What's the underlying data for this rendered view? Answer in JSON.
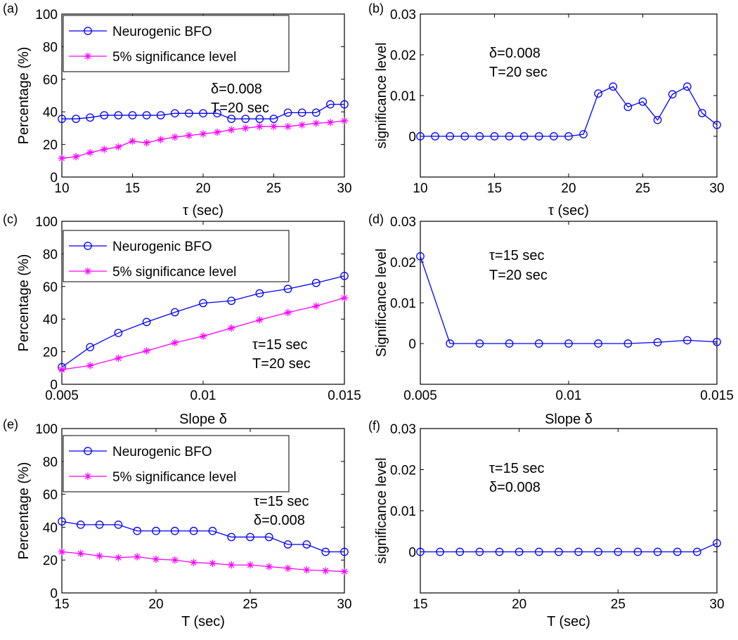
{
  "colors": {
    "blue": "#0000ff",
    "magenta": "#ff00ff",
    "axis": "#000000"
  },
  "chart_data": [
    {
      "id": "a",
      "panel_label": "(a)",
      "type": "line",
      "xlabel": "τ (sec)",
      "ylabel": "Percentage (%)",
      "xlim": [
        10,
        30
      ],
      "ylim": [
        0,
        100
      ],
      "xticks": [
        10,
        15,
        20,
        25,
        30
      ],
      "xtick_labels": [
        "10",
        "15",
        "20",
        "25",
        "30"
      ],
      "yticks": [
        0,
        20,
        40,
        60,
        80,
        100
      ],
      "ytick_labels": [
        "0",
        "20",
        "40",
        "60",
        "80",
        "100"
      ],
      "legend": true,
      "x": [
        10,
        11,
        12,
        13,
        14,
        15,
        16,
        17,
        18,
        19,
        20,
        21,
        22,
        23,
        24,
        25,
        26,
        27,
        28,
        29,
        30
      ],
      "series": [
        {
          "name": "Neurogenic BFO",
          "color": "#0000ff",
          "marker": "circle",
          "values": [
            35.7,
            35.7,
            36.5,
            37.9,
            37.9,
            37.9,
            37.9,
            37.9,
            39.1,
            39.1,
            39.1,
            39.1,
            35.7,
            35.7,
            35.7,
            35.7,
            39.5,
            39.5,
            39.5,
            44.6,
            44.6
          ]
        },
        {
          "name": "5% significance level",
          "color": "#ff00ff",
          "marker": "star",
          "values": [
            11.5,
            12.5,
            15,
            17,
            18.5,
            22,
            21,
            23,
            24.5,
            25.5,
            26.5,
            27.5,
            29,
            30,
            31,
            31,
            31,
            32,
            33,
            33.5,
            34.5
          ]
        }
      ],
      "annotations": [
        "δ=0.008",
        "T=20 sec"
      ]
    },
    {
      "id": "b",
      "panel_label": "(b)",
      "type": "line",
      "xlabel": "τ (sec)",
      "ylabel": "significance level",
      "xlim": [
        10,
        30
      ],
      "ylim": [
        -0.01,
        0.03
      ],
      "xticks": [
        10,
        15,
        20,
        25,
        30
      ],
      "xtick_labels": [
        "10",
        "15",
        "20",
        "25",
        "30"
      ],
      "yticks": [
        0,
        0.01,
        0.02,
        0.03
      ],
      "ytick_labels": [
        "0",
        "0.01",
        "0.02",
        "0.03"
      ],
      "legend": false,
      "x": [
        10,
        11,
        12,
        13,
        14,
        15,
        16,
        17,
        18,
        19,
        20,
        21,
        22,
        23,
        24,
        25,
        26,
        27,
        28,
        29,
        30
      ],
      "series": [
        {
          "name": "significance level",
          "color": "#0000ff",
          "marker": "circle",
          "values": [
            0,
            0,
            0,
            0,
            0,
            0,
            0,
            0,
            0,
            0,
            0,
            0.0005,
            0.0105,
            0.0122,
            0.0072,
            0.0085,
            0.004,
            0.0103,
            0.0122,
            0.0057,
            0.0028
          ]
        }
      ],
      "annotations": [
        "δ=0.008",
        "T=20 sec"
      ]
    },
    {
      "id": "c",
      "panel_label": "(c)",
      "type": "line",
      "xlabel": "Slope δ",
      "ylabel": "Percentage (%)",
      "xlim": [
        0.005,
        0.015
      ],
      "ylim": [
        0,
        100
      ],
      "xticks": [
        0.005,
        0.01,
        0.015
      ],
      "xtick_labels": [
        "0.005",
        "0.01",
        "0.015"
      ],
      "yticks": [
        0,
        20,
        40,
        60,
        80,
        100
      ],
      "ytick_labels": [
        "0",
        "20",
        "40",
        "60",
        "80",
        "100"
      ],
      "legend": true,
      "x": [
        0.005,
        0.006,
        0.007,
        0.008,
        0.009,
        0.01,
        0.011,
        0.012,
        0.013,
        0.014,
        0.015
      ],
      "series": [
        {
          "name": "Neurogenic BFO",
          "color": "#0000ff",
          "marker": "circle",
          "values": [
            10.5,
            22.8,
            31.5,
            38.2,
            44.2,
            49.8,
            51.2,
            55.8,
            58.5,
            62.2,
            66.5
          ]
        },
        {
          "name": "5% significance level",
          "color": "#ff00ff",
          "marker": "star",
          "values": [
            9,
            11.5,
            16,
            20.5,
            25.5,
            29.5,
            34.5,
            39.5,
            44,
            48,
            53
          ]
        }
      ],
      "annotations": [
        "τ=15 sec",
        "T=20 sec"
      ]
    },
    {
      "id": "d",
      "panel_label": "(d)",
      "type": "line",
      "xlabel": "Slope δ",
      "ylabel": "Significance level",
      "xlim": [
        0.005,
        0.015
      ],
      "ylim": [
        -0.01,
        0.03
      ],
      "xticks": [
        0.005,
        0.01,
        0.015
      ],
      "xtick_labels": [
        "0.005",
        "0.01",
        "0.015"
      ],
      "yticks": [
        0,
        0.01,
        0.02,
        0.03
      ],
      "ytick_labels": [
        "0",
        "0.01",
        "0.02",
        "0.03"
      ],
      "legend": false,
      "x": [
        0.005,
        0.006,
        0.007,
        0.008,
        0.009,
        0.01,
        0.011,
        0.012,
        0.013,
        0.014,
        0.015
      ],
      "series": [
        {
          "name": "Significance level",
          "color": "#0000ff",
          "marker": "circle",
          "values": [
            0.0214,
            0,
            0,
            0,
            0,
            0,
            0,
            0,
            0.0003,
            0.0008,
            0.0004
          ]
        }
      ],
      "annotations": [
        "τ=15 sec",
        "T=20 sec"
      ]
    },
    {
      "id": "e",
      "panel_label": "(e)",
      "type": "line",
      "xlabel": "T (sec)",
      "ylabel": "Percentage (%)",
      "xlim": [
        15,
        30
      ],
      "ylim": [
        0,
        100
      ],
      "xticks": [
        15,
        20,
        25,
        30
      ],
      "xtick_labels": [
        "15",
        "20",
        "25",
        "30"
      ],
      "yticks": [
        0,
        20,
        40,
        60,
        80,
        100
      ],
      "ytick_labels": [
        "0",
        "20",
        "40",
        "60",
        "80",
        "100"
      ],
      "legend": true,
      "x": [
        15,
        16,
        17,
        18,
        19,
        20,
        21,
        22,
        23,
        24,
        25,
        26,
        27,
        28,
        29,
        30
      ],
      "series": [
        {
          "name": "Neurogenic BFO",
          "color": "#0000ff",
          "marker": "circle",
          "values": [
            43.5,
            41.5,
            41.5,
            41.5,
            37.7,
            37.7,
            37.7,
            37.7,
            37.7,
            34,
            34,
            34,
            29.5,
            29.5,
            25,
            25
          ]
        },
        {
          "name": "5% significance level",
          "color": "#ff00ff",
          "marker": "star",
          "values": [
            25,
            24,
            22.5,
            21.5,
            22,
            20.5,
            20,
            18.5,
            18,
            17,
            17,
            16,
            15,
            14,
            13.5,
            13
          ]
        }
      ],
      "annotations": [
        "τ=15 sec",
        "δ=0.008"
      ]
    },
    {
      "id": "f",
      "panel_label": "(f)",
      "type": "line",
      "xlabel": "T (sec)",
      "ylabel": "significance level",
      "xlim": [
        15,
        30
      ],
      "ylim": [
        -0.01,
        0.03
      ],
      "xticks": [
        15,
        20,
        25,
        30
      ],
      "xtick_labels": [
        "15",
        "20",
        "25",
        "30"
      ],
      "yticks": [
        0,
        0.01,
        0.02,
        0.03
      ],
      "ytick_labels": [
        "0",
        "0.01",
        "0.02",
        "0.03"
      ],
      "legend": false,
      "x": [
        15,
        16,
        17,
        18,
        19,
        20,
        21,
        22,
        23,
        24,
        25,
        26,
        27,
        28,
        29,
        30
      ],
      "series": [
        {
          "name": "significance level",
          "color": "#0000ff",
          "marker": "circle",
          "values": [
            0,
            0,
            0,
            0,
            0,
            0,
            0,
            0,
            0,
            0,
            0,
            0,
            0,
            0,
            0,
            0.0021
          ]
        }
      ],
      "annotations": [
        "τ=15 sec",
        "δ=0.008"
      ]
    }
  ]
}
